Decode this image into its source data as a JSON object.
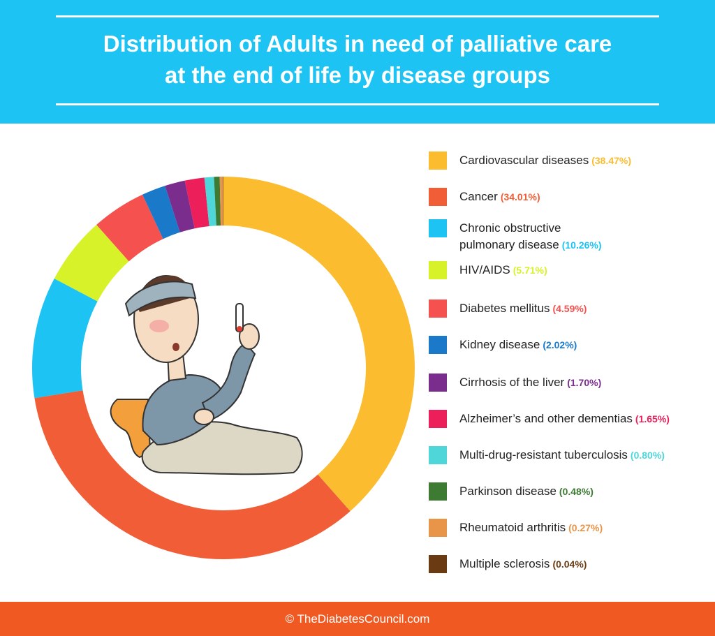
{
  "header": {
    "title_line1": "Distribution of Adults in need of palliative care",
    "title_line2": "at the end of life by disease groups"
  },
  "footer": {
    "credit": "© TheDiabetesCouncil.com"
  },
  "chart_data": {
    "type": "pie",
    "title": "Distribution of Adults in need of palliative care at the end of life by disease groups",
    "legend_position": "right",
    "slices": [
      {
        "label": "Cardiovascular diseases",
        "value": 38.47,
        "display": "(38.47%)",
        "color": "#fbbd2f"
      },
      {
        "label": "Cancer",
        "value": 34.01,
        "display": "(34.01%)",
        "color": "#f05d36"
      },
      {
        "label": "Chronic obstructive pulmonary disease",
        "label_line1": "Chronic obstructive",
        "label_line2": "pulmonary disease",
        "value": 10.26,
        "display": "(10.26%)",
        "color": "#1cc3f3"
      },
      {
        "label": "HIV/AIDS",
        "value": 5.71,
        "display": "(5.71%)",
        "color": "#d8f22a"
      },
      {
        "label": "Diabetes mellitus",
        "value": 4.59,
        "display": "(4.59%)",
        "color": "#f5514f"
      },
      {
        "label": "Kidney disease",
        "value": 2.02,
        "display": "(2.02%)",
        "color": "#1b79c9"
      },
      {
        "label": "Cirrhosis of the liver",
        "value": 1.7,
        "display": "(1.70%)",
        "color": "#7b2d8e"
      },
      {
        "label": "Alzheimer’s and other dementias",
        "value": 1.65,
        "display": "(1.65%)",
        "color": "#ec1f5a"
      },
      {
        "label": "Multi-drug-resistant tuberculosis",
        "value": 0.8,
        "display": "(0.80%)",
        "color": "#4fd6d8"
      },
      {
        "label": "Parkinson disease",
        "value": 0.48,
        "display": "(0.48%)",
        "color": "#3d7a32"
      },
      {
        "label": "Rheumatoid arthritis",
        "value": 0.27,
        "display": "(0.27%)",
        "color": "#e8954a"
      },
      {
        "label": "Multiple sclerosis",
        "value": 0.04,
        "display": "(0.04%)",
        "color": "#6a3b12"
      }
    ]
  }
}
